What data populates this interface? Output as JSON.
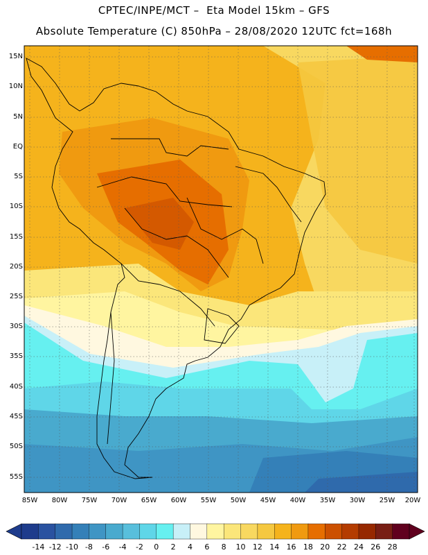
{
  "header": {
    "title_line1": "CPTEC/INPE/MCT –  Eta Model 15km – GFS",
    "title_line2": "Absolute Temperature (C) 850hPa – 28/08/2020 12UTC fct=168h"
  },
  "map": {
    "lat_labels": [
      "15N",
      "10N",
      "5N",
      "EQ",
      "5S",
      "10S",
      "15S",
      "20S",
      "25S",
      "30S",
      "35S",
      "40S",
      "45S",
      "50S",
      "55S"
    ],
    "lon_labels": [
      "85W",
      "80W",
      "75W",
      "70W",
      "65W",
      "60W",
      "55W",
      "50W",
      "45W",
      "40W",
      "35W",
      "30W",
      "25W",
      "20W"
    ],
    "gridlines": "dotted"
  },
  "colorbar": {
    "ticks": [
      "-14",
      "-12",
      "-10",
      "-8",
      "-6",
      "-4",
      "-2",
      "0",
      "2",
      "4",
      "6",
      "8",
      "10",
      "12",
      "14",
      "16",
      "18",
      "20",
      "22",
      "24",
      "26",
      "28"
    ],
    "colors": [
      "#1e3c8c",
      "#2a52a0",
      "#2f6aac",
      "#3480b8",
      "#3f95c4",
      "#49aace",
      "#58bfdc",
      "#5fd6e8",
      "#66f0f0",
      "#c8f0f8",
      "#fff8e0",
      "#fff5a0",
      "#fbe67a",
      "#f8d860",
      "#f5c840",
      "#f5b31c",
      "#f09a10",
      "#e66e00",
      "#cc5000",
      "#b43c00",
      "#962800",
      "#781e14",
      "#60001e"
    ]
  }
}
